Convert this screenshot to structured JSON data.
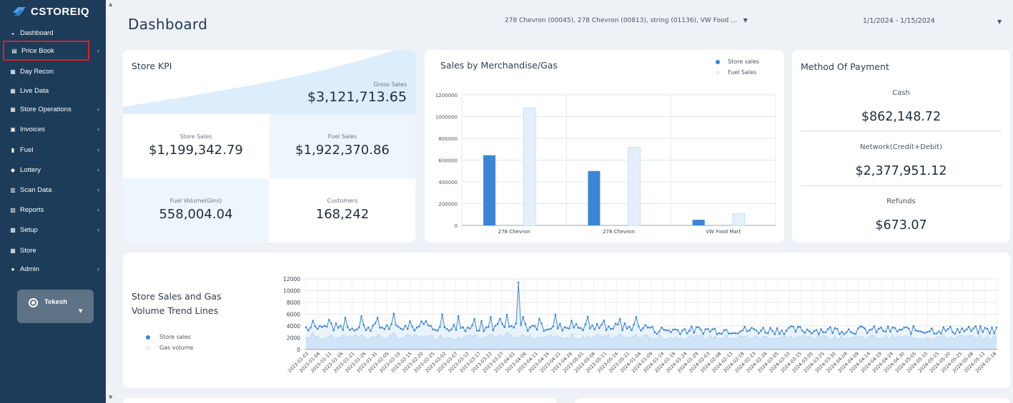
{
  "app": {
    "brand": "CSTOREIQ"
  },
  "sidebar": {
    "items": [
      {
        "label": "Dashboard",
        "icon": "dashboard-icon",
        "has_children": false
      },
      {
        "label": "Price Book",
        "icon": "book-icon",
        "has_children": true
      },
      {
        "label": "Day Recon",
        "icon": "grid-icon",
        "has_children": false
      },
      {
        "label": "Live Data",
        "icon": "grid-icon",
        "has_children": false
      },
      {
        "label": "Store Operations",
        "icon": "grid-icon",
        "has_children": true
      },
      {
        "label": "Invoices",
        "icon": "invoice-icon",
        "has_children": true
      },
      {
        "label": "Fuel",
        "icon": "fuel-icon",
        "has_children": true
      },
      {
        "label": "Lottery",
        "icon": "ticket-icon",
        "has_children": true
      },
      {
        "label": "Scan Data",
        "icon": "barcode-icon",
        "has_children": true
      },
      {
        "label": "Reports",
        "icon": "report-icon",
        "has_children": true
      },
      {
        "label": "Setup",
        "icon": "setup-icon",
        "has_children": true
      },
      {
        "label": "Store",
        "icon": "store-icon",
        "has_children": false
      },
      {
        "label": "Admin",
        "icon": "user-icon",
        "has_children": true
      }
    ],
    "user": {
      "name": "Tekesh"
    }
  },
  "header": {
    "title": "Dashboard",
    "store_filter": "278 Chevron (00045), 278 Chevron (00813), string (01136), VW Food ...",
    "date_range": "1/1/2024 - 1/15/2024"
  },
  "kpi": {
    "title": "Store KPI",
    "gross_sales_label": "Gross Sales",
    "gross_sales_value": "$3,121,713.65",
    "store_sales_label": "Store Sales",
    "store_sales_value": "$1,199,342.79",
    "fuel_sales_label": "Fuel Sales",
    "fuel_sales_value": "$1,922,370.86",
    "fuel_volume_label": "Fuel Volume(Glns)",
    "fuel_volume_value": "558,004.04",
    "customers_label": "Customers",
    "customers_value": "168,242"
  },
  "payment": {
    "title": "Method Of Payment",
    "cash_label": "Cash",
    "cash_value": "$862,148.72",
    "network_label": "Network(Credit+Debit)",
    "network_value": "$2,377,951.12",
    "refunds_label": "Refunds",
    "refunds_value": "$673.07"
  },
  "colors": {
    "store_sales": "#3a86d6",
    "fuel_sales": "#e3f0fc",
    "sidebar_bg": "#1c3c5a",
    "highlight": "#e02020"
  },
  "chart_data": [
    {
      "type": "bar",
      "title": "Sales by Merchandise/Gas",
      "categories": [
        "278 Chevron",
        "278 Chevron",
        "VW Food Mart"
      ],
      "series": [
        {
          "name": "Store sales",
          "values": [
            645000,
            500000,
            52000
          ]
        },
        {
          "name": "Fuel Sales",
          "values": [
            1080000,
            720000,
            110000
          ]
        }
      ],
      "ylim": [
        0,
        1200000
      ],
      "yticks": [
        0,
        200000,
        400000,
        600000,
        800000,
        1000000,
        1200000
      ],
      "legend": "top-right",
      "grid": true
    },
    {
      "type": "line",
      "title": "Store Sales and Gas Volume Trend Lines",
      "series_names": [
        "Store sales",
        "Gas volume"
      ],
      "ylim": [
        0,
        12000
      ],
      "yticks": [
        0,
        2000,
        4000,
        6000,
        8000,
        10000,
        12000
      ],
      "x_start": "2023-01-01",
      "x_labels": [
        "2023-01-01",
        "2023-01-06",
        "2023-01-11",
        "2023-01-16",
        "2023-01-21",
        "2023-01-26",
        "2023-01-31",
        "2023-02-05",
        "2023-02-10",
        "2023-02-15",
        "2023-02-20",
        "2023-02-25",
        "2023-03-02",
        "2023-03-07",
        "2023-03-12",
        "2023-03-17",
        "2023-03-22",
        "2023-03-27",
        "2023-04-01",
        "2023-04-06",
        "2023-04-11",
        "2023-04-16",
        "2023-04-21",
        "2023-04-26",
        "2023-05-01",
        "2023-05-06",
        "2023-05-11",
        "2023-05-16",
        "2023-05-21",
        "2024-01-04",
        "2024-01-09",
        "2024-01-14",
        "2024-01-19",
        "2024-01-24",
        "2024-01-29",
        "2024-02-03",
        "2024-02-08",
        "2024-02-13",
        "2024-02-18",
        "2024-02-23",
        "2024-02-28",
        "2024-03-05",
        "2024-03-10",
        "2024-03-15",
        "2024-03-20",
        "2024-03-25",
        "2024-03-30",
        "2024-04-04",
        "2024-04-09",
        "2024-04-14",
        "2024-04-19",
        "2024-04-24",
        "2024-04-30",
        "2024-05-05",
        "2024-05-10",
        "2024-05-15",
        "2024-05-20",
        "2024-05-25",
        "2024-05-08",
        "2024-05-13",
        "2024-05-18"
      ],
      "legend": "left",
      "grid": true
    }
  ]
}
